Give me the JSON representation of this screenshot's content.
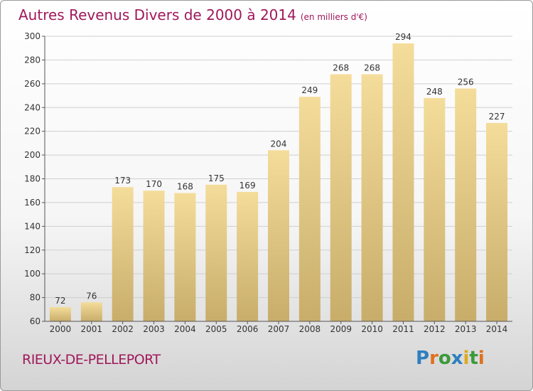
{
  "header": {
    "title": "Autres Revenus Divers de 2000 à 2014",
    "unit": "(en milliers d'€)"
  },
  "footer": {
    "commune": "RIEUX-DE-PELLEPORT",
    "brand": "Proxiti"
  },
  "colors": {
    "title": "#a0185a",
    "bar_top": "#f4dc9a",
    "bar_bottom": "#c8ad6a",
    "grid": "#cfcfcf"
  },
  "chart_data": {
    "type": "bar",
    "title": "Autres Revenus Divers de 2000 à 2014",
    "subtitle": "(en milliers d'€)",
    "categories": [
      "2000",
      "2001",
      "2002",
      "2003",
      "2004",
      "2005",
      "2006",
      "2007",
      "2008",
      "2009",
      "2010",
      "2011",
      "2012",
      "2013",
      "2014"
    ],
    "values": [
      72,
      76,
      173,
      170,
      168,
      175,
      169,
      204,
      249,
      268,
      268,
      294,
      248,
      256,
      227
    ],
    "ylim": [
      60,
      300
    ],
    "yticks": [
      60,
      80,
      100,
      120,
      140,
      160,
      180,
      200,
      220,
      240,
      260,
      280,
      300
    ],
    "grid": true,
    "data_labels": true
  }
}
